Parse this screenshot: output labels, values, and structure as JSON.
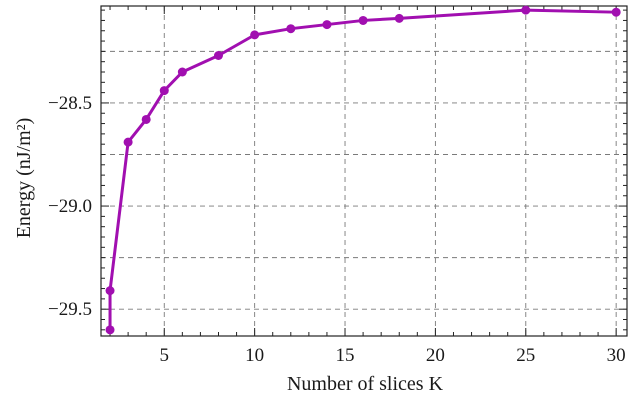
{
  "chart_data": {
    "type": "line",
    "title": "",
    "xlabel": "Number of slices K",
    "ylabel": "Energy (nJ/m²)",
    "xlim": [
      1.5,
      30.6
    ],
    "ylim": [
      -29.63,
      -28.03
    ],
    "x_ticks": [
      5,
      10,
      15,
      20,
      25,
      30
    ],
    "x_tick_labels": [
      "5",
      "10",
      "15",
      "20",
      "25",
      "30"
    ],
    "y_ticks": [
      -28.5,
      -29.0,
      -29.5
    ],
    "y_tick_labels": [
      "−28.5",
      "−29.0",
      "−29.5"
    ],
    "grid": true,
    "grid_x": [
      5,
      10,
      15,
      20,
      25,
      30
    ],
    "grid_y": [
      -28.25,
      -28.5,
      -28.75,
      -29.0,
      -29.25,
      -29.5
    ],
    "legend": "none",
    "series": [
      {
        "color": "#a10fb0",
        "x": [
          2,
          2,
          3,
          4,
          5,
          6,
          8,
          10,
          12,
          14,
          16,
          18,
          25,
          30
        ],
        "y": [
          -29.6,
          -29.41,
          -28.69,
          -28.58,
          -28.44,
          -28.35,
          -28.27,
          -28.17,
          -28.14,
          -28.12,
          -28.1,
          -28.09,
          -28.05,
          -28.06
        ]
      }
    ]
  }
}
